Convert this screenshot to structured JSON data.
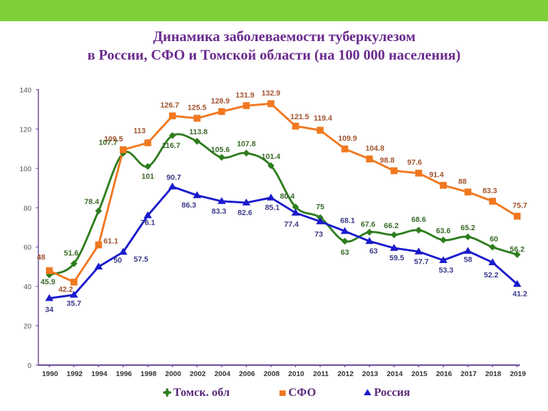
{
  "header": {
    "title_line1": "Динамика заболеваемости туберкулезом",
    "title_line2": "в России, СФО и Томской области (на 100 000 населения)"
  },
  "colors": {
    "top_bar": "#7ecf3a",
    "title": "#6a2a8e",
    "axis": "#6a4a9a",
    "tomsk": "#2e7d1e",
    "sfo": "#f07820",
    "russia": "#1a1acc",
    "tomsk_label": "#3a6a2a",
    "sfo_label": "#a0522d",
    "russia_label": "#3a3a8a"
  },
  "chart_data": {
    "type": "line",
    "title": "Динамика заболеваемости туберкулезом в России, СФО и Томской области (на 100 000 населения)",
    "xlabel": "",
    "ylabel": "",
    "categories": [
      "1990",
      "1992",
      "1994",
      "1996",
      "1998",
      "2000",
      "2002",
      "2004",
      "2006",
      "2008",
      "2010",
      "2011",
      "2012",
      "2013",
      "2014",
      "2015",
      "2016",
      "2017",
      "2018",
      "2019"
    ],
    "ylim": [
      0,
      140
    ],
    "yticks": [
      0,
      20,
      40,
      60,
      80,
      100,
      120,
      140
    ],
    "grid": false,
    "legend_position": "bottom",
    "series": [
      {
        "name": "Томск. обл",
        "marker": "diamond",
        "smooth": true,
        "values": [
          45.9,
          51.6,
          78.4,
          107.7,
          101,
          116.7,
          113.8,
          105.6,
          107.8,
          101.4,
          80.4,
          75,
          63,
          67.6,
          66.2,
          68.6,
          63.6,
          65.2,
          60,
          56.2
        ],
        "labels": [
          "45.9",
          "51.6",
          "78.4",
          "107.7",
          "101",
          "116.7",
          "113.8",
          "105.6",
          "107.8",
          "101.4",
          "80.4",
          "75",
          "63",
          "67.6",
          "66.2",
          "68.6",
          "63.6",
          "65.2",
          "60",
          "56.2"
        ]
      },
      {
        "name": "СФО",
        "marker": "square",
        "smooth": false,
        "values": [
          48,
          42.2,
          61.1,
          109.5,
          113,
          126.7,
          125.5,
          128.9,
          131.9,
          132.9,
          121.5,
          119.4,
          109.9,
          104.8,
          98.8,
          97.6,
          91.4,
          88,
          83.3,
          75.7
        ],
        "labels": [
          "48",
          "42.2",
          "61.1",
          "109.5",
          "113",
          "126.7",
          "125.5",
          "128.9",
          "131.9",
          "132.9",
          "121.5",
          "119.4",
          "109.9",
          "104.8",
          "98.8",
          "97.6",
          "91.4",
          "88",
          "83.3",
          "75.7"
        ]
      },
      {
        "name": "Россия",
        "marker": "triangle",
        "smooth": false,
        "values": [
          34,
          35.7,
          50,
          57.5,
          76.1,
          90.7,
          86.3,
          83.3,
          82.6,
          85.1,
          77.4,
          73,
          68.1,
          63,
          59.5,
          57.7,
          53.3,
          58,
          52.2,
          41.2
        ],
        "labels": [
          "34",
          "35.7",
          "50",
          "57.5",
          "76.1",
          "90.7",
          "86.3",
          "83.3",
          "82.6",
          "85.1",
          "77.4",
          "73",
          "68.1",
          "63",
          "59.5",
          "57.7",
          "53.3",
          "58",
          "52.2",
          "41.2"
        ]
      }
    ]
  },
  "legend": {
    "items": [
      {
        "label": "Томск. обл",
        "icon": "diamond-marker"
      },
      {
        "label": "СФО",
        "icon": "square-marker"
      },
      {
        "label": "Россия",
        "icon": "triangle-marker"
      }
    ]
  }
}
